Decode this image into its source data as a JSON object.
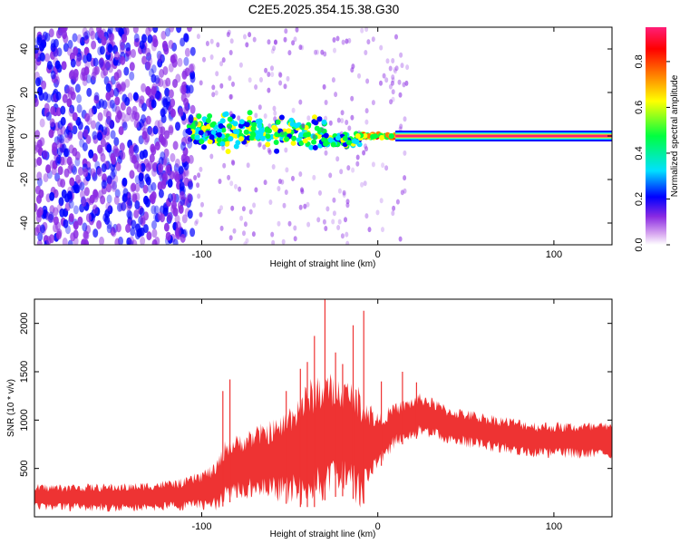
{
  "title": "C2E5.2025.354.15.38.G30",
  "chart_data": [
    {
      "type": "heatmap",
      "xlabel": "Height of straight line (km)",
      "ylabel": "Frequency (Hz)",
      "xlim": [
        -195,
        133
      ],
      "ylim": [
        -50,
        50
      ],
      "xticks": [
        -100,
        0,
        100
      ],
      "yticks": [
        -40,
        -20,
        0,
        20,
        40
      ],
      "colorbar": {
        "label": "Normalized spectral amplitude",
        "range": [
          0,
          0.95
        ],
        "ticks": [
          0,
          0.2,
          0.4,
          0.6,
          0.8
        ],
        "tick_labels": [
          "0.0",
          "0.2",
          "0.4",
          "0.6",
          "0.8"
        ],
        "colormap": [
          "#ffffff",
          "#d8a8f0",
          "#8a2be2",
          "#0000ff",
          "#00e0ff",
          "#00ff40",
          "#ffff00",
          "#ff8000",
          "#ff0000",
          "#ff1e78"
        ]
      },
      "features": {
        "broadband_noise_x": [
          -195,
          -105
        ],
        "band_x": [
          -108,
          15
        ],
        "band_freq_halfwidth_hz": 10,
        "carrier_x": [
          10,
          133
        ],
        "carrier_freq_hz": 0
      }
    },
    {
      "type": "line",
      "xlabel": "Height of straight line (km)",
      "ylabel": "SNR (10 * v/v)",
      "xlim": [
        -195,
        133
      ],
      "ylim": [
        0,
        2250
      ],
      "xticks": [
        -100,
        0,
        100
      ],
      "yticks": [
        500,
        1000,
        1500,
        2000
      ],
      "color": "#ee3333",
      "envelope": {
        "x": [
          -195,
          -140,
          -110,
          -92,
          -86,
          -80,
          -70,
          -55,
          -45,
          -35,
          -28,
          -15,
          -10,
          0,
          10,
          25,
          40,
          60,
          90,
          133
        ],
        "mean": [
          200,
          200,
          230,
          310,
          480,
          520,
          560,
          600,
          700,
          800,
          850,
          820,
          700,
          780,
          950,
          1060,
          950,
          880,
          800,
          780
        ],
        "spread": [
          140,
          150,
          170,
          250,
          350,
          330,
          380,
          450,
          600,
          700,
          650,
          600,
          650,
          300,
          230,
          230,
          200,
          200,
          190,
          200
        ]
      },
      "peaks": [
        {
          "x": -88,
          "y": 1300
        },
        {
          "x": -84,
          "y": 1420
        },
        {
          "x": -52,
          "y": 1300
        },
        {
          "x": -44,
          "y": 1530
        },
        {
          "x": -40,
          "y": 1600
        },
        {
          "x": -36,
          "y": 1870
        },
        {
          "x": -30,
          "y": 2250
        },
        {
          "x": -24,
          "y": 1700
        },
        {
          "x": -20,
          "y": 1580
        },
        {
          "x": -14,
          "y": 1980
        },
        {
          "x": -8,
          "y": 2130
        },
        {
          "x": 2,
          "y": 1400
        },
        {
          "x": 14,
          "y": 1500
        },
        {
          "x": 22,
          "y": 1390
        }
      ]
    }
  ]
}
